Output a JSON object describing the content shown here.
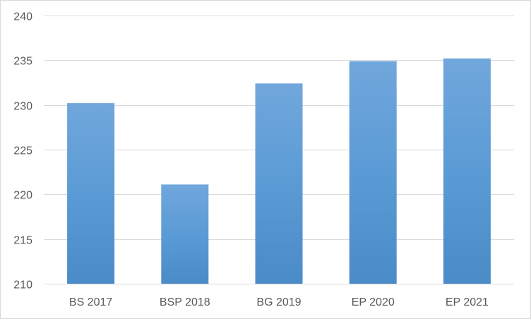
{
  "chart_data": {
    "type": "bar",
    "categories": [
      "BS 2017",
      "BSP 2018",
      "BG 2019",
      "EP 2020",
      "EP 2021"
    ],
    "values": [
      230.2,
      221.1,
      232.4,
      234.9,
      235.2
    ],
    "title": "",
    "xlabel": "",
    "ylabel": "",
    "ylim": [
      210,
      240
    ],
    "yticks": [
      210,
      215,
      220,
      225,
      230,
      235,
      240
    ],
    "grid": true,
    "legend": "none",
    "bar_color": "#5b9bd5"
  }
}
